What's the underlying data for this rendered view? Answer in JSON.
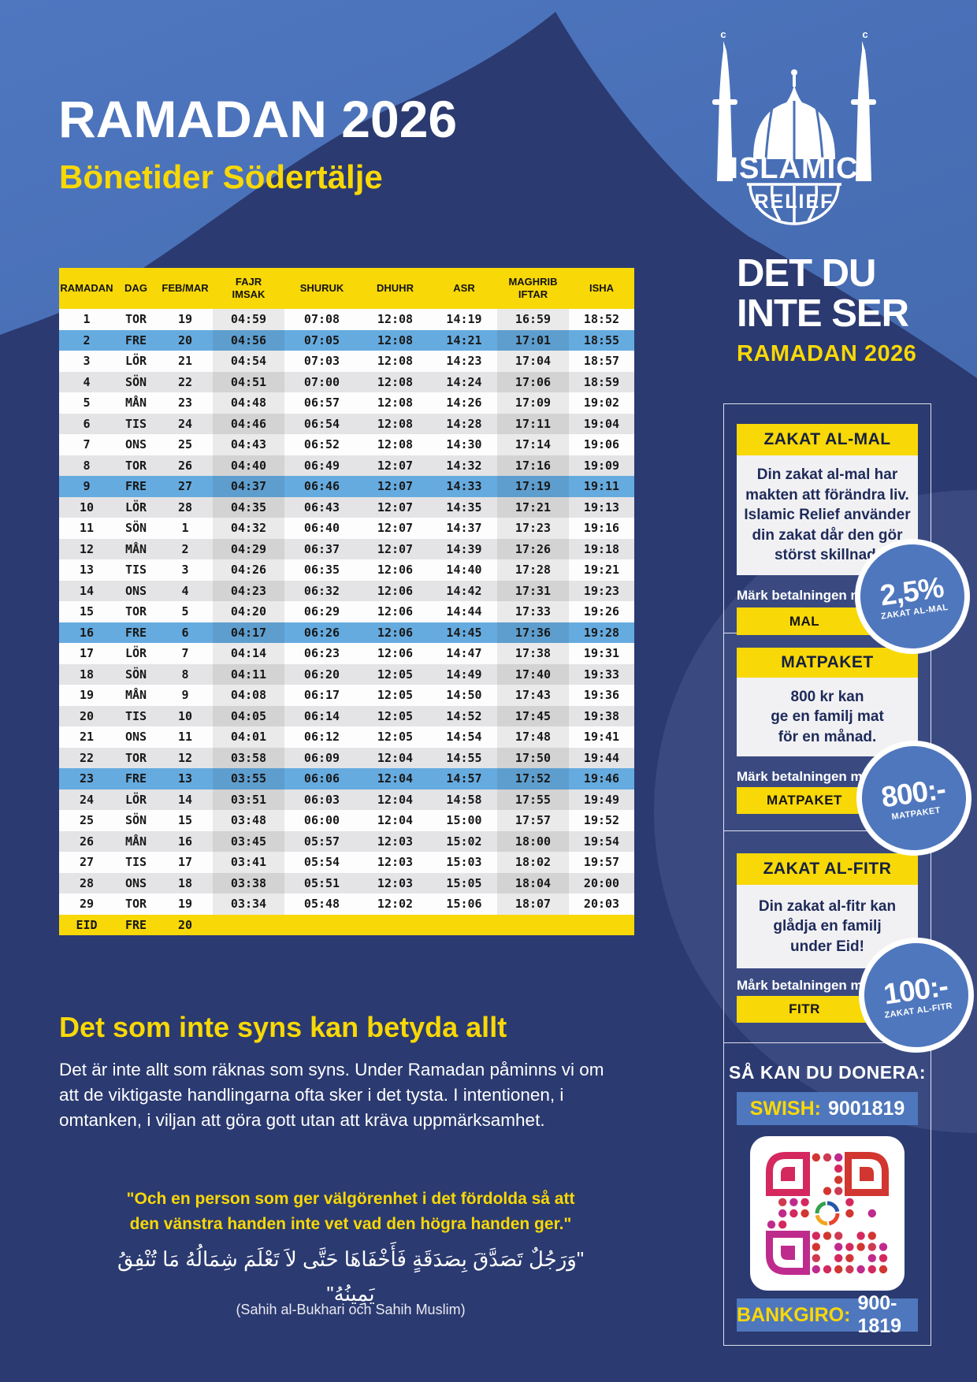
{
  "header": {
    "title": "RAMADAN 2026",
    "subtitle": "Bönetider Södertälje"
  },
  "logo": {
    "line1": "ISLAMIC",
    "line2": "RELIEF"
  },
  "sidebar": {
    "campaign": {
      "line1": "DET DU",
      "line2": "INTE SER",
      "sub": "RAMADAN 2026"
    },
    "cards": [
      {
        "title": "ZAKAT AL-MAL",
        "body": "Din zakat al-mal har\nmakten att förändra liv.\nIslamic Relief använder\ndin zakat dår den gör\nstörst skillnad.",
        "mark_label": "Märk betalningen med:",
        "button": "MAL",
        "badge_value": "2,5%",
        "badge_label": "ZAKAT AL-MAL"
      },
      {
        "title": "MATPAKET",
        "body": "800 kr kan\nge en familj mat\nför en månad.",
        "mark_label": "Märk betalningen med:",
        "button": "MATPAKET",
        "badge_value": "800:-",
        "badge_label": "MATPAKET"
      },
      {
        "title": "ZAKAT AL-FITR",
        "body": "Din zakat al-fitr kan\nglådja en familj\nunder Eid!",
        "mark_label": "Mårk betalningen med:",
        "button": "FITR",
        "badge_value": "100:-",
        "badge_label": "ZAKAT AL-FITR"
      }
    ],
    "donate": {
      "heading": "SÅ KAN DU DONERA:",
      "swish_label": "SWISH:",
      "swish_value": "9001819",
      "bankgiro_label": "BANKGIRO:",
      "bankgiro_value": "900-1819"
    }
  },
  "table": {
    "columns": [
      "RAMADAN",
      "DAG",
      "FEB/MAR",
      "FAJR\nIMSAK",
      "SHURUK",
      "DHUHR",
      "ASR",
      "MAGHRIB\nIFTAR",
      "ISHA"
    ],
    "rows": [
      [
        "1",
        "TOR",
        "19",
        "04:59",
        "07:08",
        "12:08",
        "14:19",
        "16:59",
        "18:52"
      ],
      [
        "2",
        "FRE",
        "20",
        "04:56",
        "07:05",
        "12:08",
        "14:21",
        "17:01",
        "18:55"
      ],
      [
        "3",
        "LÖR",
        "21",
        "04:54",
        "07:03",
        "12:08",
        "14:23",
        "17:04",
        "18:57"
      ],
      [
        "4",
        "SÖN",
        "22",
        "04:51",
        "07:00",
        "12:08",
        "14:24",
        "17:06",
        "18:59"
      ],
      [
        "5",
        "MÅN",
        "23",
        "04:48",
        "06:57",
        "12:08",
        "14:26",
        "17:09",
        "19:02"
      ],
      [
        "6",
        "TIS",
        "24",
        "04:46",
        "06:54",
        "12:08",
        "14:28",
        "17:11",
        "19:04"
      ],
      [
        "7",
        "ONS",
        "25",
        "04:43",
        "06:52",
        "12:08",
        "14:30",
        "17:14",
        "19:06"
      ],
      [
        "8",
        "TOR",
        "26",
        "04:40",
        "06:49",
        "12:07",
        "14:32",
        "17:16",
        "19:09"
      ],
      [
        "9",
        "FRE",
        "27",
        "04:37",
        "06:46",
        "12:07",
        "14:33",
        "17:19",
        "19:11"
      ],
      [
        "10",
        "LÖR",
        "28",
        "04:35",
        "06:43",
        "12:07",
        "14:35",
        "17:21",
        "19:13"
      ],
      [
        "11",
        "SÖN",
        "1",
        "04:32",
        "06:40",
        "12:07",
        "14:37",
        "17:23",
        "19:16"
      ],
      [
        "12",
        "MÅN",
        "2",
        "04:29",
        "06:37",
        "12:07",
        "14:39",
        "17:26",
        "19:18"
      ],
      [
        "13",
        "TIS",
        "3",
        "04:26",
        "06:35",
        "12:06",
        "14:40",
        "17:28",
        "19:21"
      ],
      [
        "14",
        "ONS",
        "4",
        "04:23",
        "06:32",
        "12:06",
        "14:42",
        "17:31",
        "19:23"
      ],
      [
        "15",
        "TOR",
        "5",
        "04:20",
        "06:29",
        "12:06",
        "14:44",
        "17:33",
        "19:26"
      ],
      [
        "16",
        "FRE",
        "6",
        "04:17",
        "06:26",
        "12:06",
        "14:45",
        "17:36",
        "19:28"
      ],
      [
        "17",
        "LÖR",
        "7",
        "04:14",
        "06:23",
        "12:06",
        "14:47",
        "17:38",
        "19:31"
      ],
      [
        "18",
        "SÖN",
        "8",
        "04:11",
        "06:20",
        "12:05",
        "14:49",
        "17:40",
        "19:33"
      ],
      [
        "19",
        "MÅN",
        "9",
        "04:08",
        "06:17",
        "12:05",
        "14:50",
        "17:43",
        "19:36"
      ],
      [
        "20",
        "TIS",
        "10",
        "04:05",
        "06:14",
        "12:05",
        "14:52",
        "17:45",
        "19:38"
      ],
      [
        "21",
        "ONS",
        "11",
        "04:01",
        "06:12",
        "12:05",
        "14:54",
        "17:48",
        "19:41"
      ],
      [
        "22",
        "TOR",
        "12",
        "03:58",
        "06:09",
        "12:04",
        "14:55",
        "17:50",
        "19:44"
      ],
      [
        "23",
        "FRE",
        "13",
        "03:55",
        "06:06",
        "12:04",
        "14:57",
        "17:52",
        "19:46"
      ],
      [
        "24",
        "LÖR",
        "14",
        "03:51",
        "06:03",
        "12:04",
        "14:58",
        "17:55",
        "19:49"
      ],
      [
        "25",
        "SÖN",
        "15",
        "03:48",
        "06:00",
        "12:04",
        "15:00",
        "17:57",
        "19:52"
      ],
      [
        "26",
        "MÅN",
        "16",
        "03:45",
        "05:57",
        "12:03",
        "15:02",
        "18:00",
        "19:54"
      ],
      [
        "27",
        "TIS",
        "17",
        "03:41",
        "05:54",
        "12:03",
        "15:03",
        "18:02",
        "19:57"
      ],
      [
        "28",
        "ONS",
        "18",
        "03:38",
        "05:51",
        "12:03",
        "15:05",
        "18:04",
        "20:00"
      ],
      [
        "29",
        "TOR",
        "19",
        "03:34",
        "05:48",
        "12:02",
        "15:06",
        "18:07",
        "20:03"
      ],
      [
        "EID",
        "FRE",
        "20",
        "",
        "",
        "",
        "",
        "",
        ""
      ]
    ]
  },
  "footer": {
    "headline": "Det som inte syns kan betyda allt",
    "paragraph": "Det är inte allt som räknas som syns. Under Ramadan påminns vi om\natt de viktigaste handlingarna ofta sker i det tysta. I intentionen, i\nomtanken, i viljan att göra gott utan att kräva uppmärksamhet.",
    "quote": "\"Och en person som ger välgörenhet i det fördolda så att\nden vänstra handen inte vet vad den högra handen ger.\"",
    "arabic": "\"وَرَجُلٌ تَصَدَّقَ بِصَدَقَةٍ فَأَخْفَاهَا حَتَّى لاَ تَعْلَمَ شِمَالُهُ مَا تُنْفِقُ يَمِينُهُ\"",
    "citation": "(Sahih al-Bukhari och Sahih Muslim)"
  },
  "colors": {
    "yellow": "#f8d807",
    "navy": "#2b3a70",
    "light_blue": "#4a72b8",
    "friday_row": "#66abdf",
    "badge_blue": "#4f77bd"
  }
}
